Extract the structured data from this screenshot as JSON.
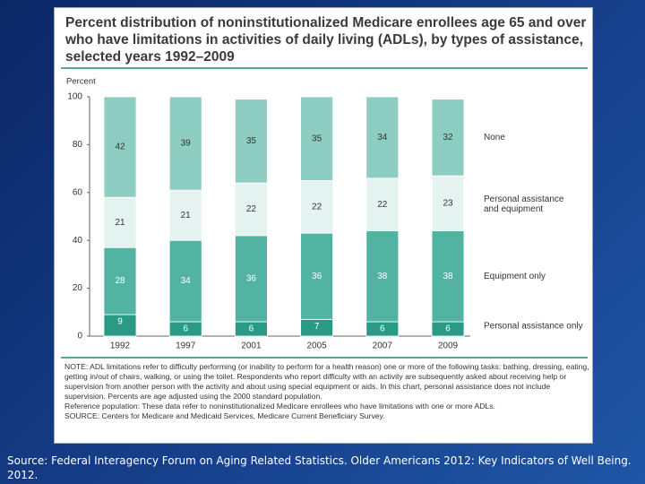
{
  "chart_data": {
    "type": "stacked_bar",
    "title": "Percent distribution of noninstitutionalized Medicare enrollees age 65 and over who have limitations in activities of daily living (ADLs), by types of assistance, selected years 1992–2009",
    "y_label": "Percent",
    "categories": [
      "1992",
      "1997",
      "2001",
      "2005",
      "2007",
      "2009"
    ],
    "series": [
      {
        "name": "Personal assistance only",
        "color": "#2a9a86",
        "label_color": "#ffffff",
        "values": [
          9,
          6,
          6,
          7,
          6,
          6
        ]
      },
      {
        "name": "Equipment only",
        "color": "#52b3a2",
        "label_color": "#ffffff",
        "values": [
          28,
          34,
          36,
          36,
          38,
          38
        ]
      },
      {
        "name": "Personal assistance and equipment",
        "color": "#e4f3f0",
        "label_color": "#333333",
        "values": [
          21,
          21,
          22,
          22,
          22,
          23
        ]
      },
      {
        "name": "None",
        "color": "#8ecdc2",
        "label_color": "#333333",
        "values": [
          42,
          39,
          35,
          35,
          34,
          32
        ]
      }
    ],
    "ylim": [
      0,
      100
    ],
    "yticks": [
      0,
      20,
      40,
      60,
      80,
      100
    ],
    "notes": [
      "NOTE: ADL limitations refer to difficulty performing (or inability to perform for a health reason) one or more of the following tasks: bathing, dressing, eating, getting in/out of chairs, walking, or using the toilet. Respondents who report difficulty with an activity are subsequently asked about receiving help or supervision from another person with the activity and about using special equipment or aids. In this chart, personal assistance does not include supervision. Percents are age adjusted using the 2000 standard population.",
      "Reference population: These data refer to noninstitutionalized Medicare enrollees who have limitations with one or more ADLs.",
      "SOURCE: Centers for Medicare and Medicaid Services, Medicare Current Beneficiary Survey."
    ],
    "footer": "Source: Federal Interagency Forum on Aging Related Statistics. Older Americans 2012: Key Indicators of Well Being. 2012."
  }
}
